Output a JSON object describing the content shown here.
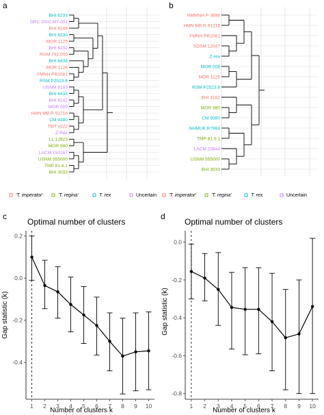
{
  "colors": {
    "imperator": "#F8766D",
    "regina": "#7CAE00",
    "rex": "#00BFC4",
    "uncertain": "#C77CFF",
    "grid": "#e6e6e6",
    "ink": "#000000",
    "axis_text": "#4d4d4d"
  },
  "panel_a": {
    "letter": "a",
    "leaves": [
      {
        "label": "BHI 6233",
        "group": "rex"
      },
      {
        "label": "DRC 2002.MT-001",
        "group": "uncertain"
      },
      {
        "label": "BHI 6248",
        "group": "imperator"
      },
      {
        "label": "BHI 6230",
        "group": "rex"
      },
      {
        "label": "MOR 1125",
        "group": "imperator"
      },
      {
        "label": "BHI 6232",
        "group": "uncertain"
      },
      {
        "label": "RGM 792.000",
        "group": "imperator"
      },
      {
        "label": "BHI 6436",
        "group": "rex"
      },
      {
        "label": "MOR 1128",
        "group": "imperator"
      },
      {
        "label": "FMNH PR2081",
        "group": "imperator"
      },
      {
        "label": "RSM P2523.8",
        "group": "rex"
      },
      {
        "label": "USNM 6183",
        "group": "uncertain"
      },
      {
        "label": "BHI 6435",
        "group": "rex"
      },
      {
        "label": "BHI 6242",
        "group": "uncertain"
      },
      {
        "label": "MOR 009",
        "group": "uncertain"
      },
      {
        "label": "HMN MB.R.91216",
        "group": "imperator"
      },
      {
        "label": "CM 9380",
        "group": "rex"
      },
      {
        "label": "TMT v222",
        "group": "imperator"
      },
      {
        "label": "Z-Rex",
        "group": "uncertain"
      },
      {
        "label": "LL 12823",
        "group": "regina"
      },
      {
        "label": "MOR 980",
        "group": "regina"
      },
      {
        "label": "LACM 150167",
        "group": "uncertain"
      },
      {
        "label": "USNM 555000",
        "group": "regina"
      },
      {
        "label": "TMP 81.6.1",
        "group": "regina"
      },
      {
        "label": "BHI 3033",
        "group": "regina"
      }
    ]
  },
  "panel_b": {
    "letter": "b",
    "leaves": [
      {
        "label": "NMMNH P-3698",
        "group": "imperator"
      },
      {
        "label": "HMN MB.R.91216",
        "group": "imperator"
      },
      {
        "label": "FMNH PR2081",
        "group": "imperator"
      },
      {
        "label": "SDSM 12047",
        "group": "imperator"
      },
      {
        "label": "Z-rex",
        "group": "rex"
      },
      {
        "label": "MOR 008",
        "group": "rex"
      },
      {
        "label": "MOR 1125",
        "group": "imperator"
      },
      {
        "label": "RSM P2523.8",
        "group": "rex"
      },
      {
        "label": "BHI 4182",
        "group": "imperator"
      },
      {
        "label": "MOR 980",
        "group": "regina"
      },
      {
        "label": "CM 9380",
        "group": "rex"
      },
      {
        "label": "NHMUK R7994",
        "group": "rex"
      },
      {
        "label": "TMP 81.6.1",
        "group": "regina"
      },
      {
        "label": "LACM 23844",
        "group": "uncertain"
      },
      {
        "label": "USNM 555000",
        "group": "regina"
      },
      {
        "label": "BHI 3033",
        "group": "regina"
      }
    ]
  },
  "legend": [
    {
      "label": "'T. imperator'",
      "group": "imperator"
    },
    {
      "label": "'T. regina'",
      "group": "regina"
    },
    {
      "label": "T. rex",
      "group": "rex"
    },
    {
      "label": "Uncertain",
      "group": "uncertain"
    }
  ],
  "chart_data": [
    {
      "panel": "c",
      "type": "line",
      "title": "Optimal number of clusters",
      "xlabel": "Number of clusters k",
      "ylabel": "Gap statistic (k)",
      "x": [
        1,
        2,
        3,
        4,
        5,
        6,
        7,
        8,
        9,
        10
      ],
      "y": [
        0.1,
        -0.035,
        -0.065,
        -0.125,
        -0.175,
        -0.225,
        -0.3,
        -0.37,
        -0.35,
        -0.345
      ],
      "error_low": [
        -0.01,
        -0.145,
        -0.19,
        -0.255,
        -0.31,
        -0.365,
        -0.44,
        -0.55,
        -0.535,
        -0.53
      ],
      "error_high": [
        0.2,
        0.085,
        0.055,
        0.005,
        -0.04,
        -0.09,
        -0.165,
        -0.19,
        -0.165,
        -0.16
      ],
      "xticks": [
        1,
        2,
        3,
        4,
        5,
        6,
        7,
        8,
        9,
        10
      ],
      "yticks": [
        0.2,
        0.0,
        -0.2,
        -0.4
      ],
      "ytick_labels": [
        "0.2",
        "0.0",
        "-0.2",
        "-0.4"
      ],
      "xlim": [
        0.55,
        10.45
      ],
      "ylim": [
        -0.575,
        0.225
      ],
      "optimal_k": 1,
      "grid": false
    },
    {
      "panel": "d",
      "type": "line",
      "title": "Optimal number of clusters",
      "xlabel": "Number of clusters k",
      "ylabel": "Gap statistic (k)",
      "x": [
        1,
        2,
        3,
        4,
        5,
        6,
        7,
        8,
        9,
        10
      ],
      "y": [
        -0.155,
        -0.19,
        -0.25,
        -0.345,
        -0.355,
        -0.355,
        -0.42,
        -0.505,
        -0.485,
        -0.34
      ],
      "error_low": [
        -0.3,
        -0.31,
        -0.44,
        -0.565,
        -0.595,
        -0.59,
        -0.68,
        -0.78,
        -0.8,
        -0.8
      ],
      "error_high": [
        -0.01,
        -0.06,
        -0.055,
        -0.16,
        -0.135,
        -0.135,
        -0.165,
        -0.25,
        -0.2,
        0.02
      ],
      "xticks": [
        1,
        2,
        3,
        4,
        5,
        6,
        7,
        8,
        9,
        10
      ],
      "yticks": [
        0.0,
        -0.2,
        -0.4,
        -0.6,
        -0.8
      ],
      "ytick_labels": [
        "0.0",
        "-0.2",
        "-0.4",
        "-0.6",
        "-0.8"
      ],
      "xlim": [
        0.55,
        10.45
      ],
      "ylim": [
        -0.83,
        0.06
      ],
      "optimal_k": 1,
      "grid": false
    }
  ]
}
